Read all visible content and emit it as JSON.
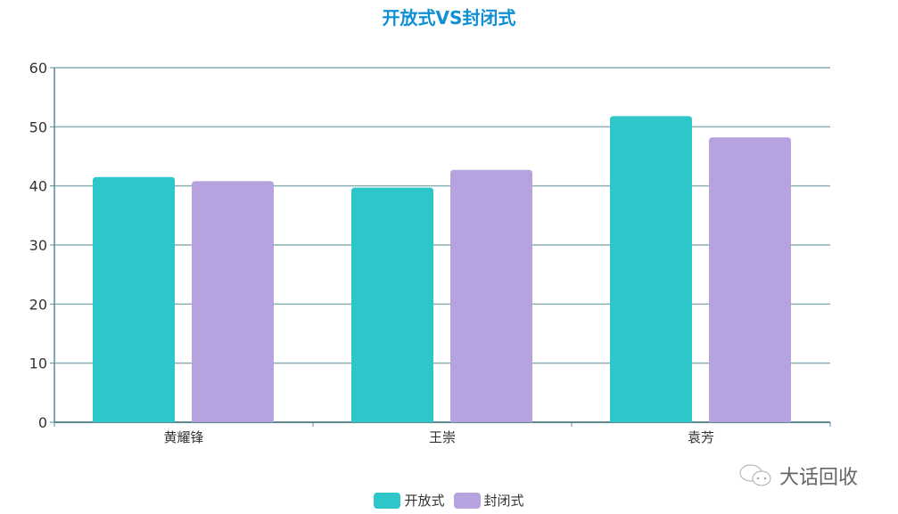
{
  "chart_data": {
    "type": "bar",
    "title": "开放式VS封闭式",
    "categories": [
      "黄耀锋",
      "王崇",
      "袁芳"
    ],
    "series": [
      {
        "name": "开放式",
        "color": "#2ec7c9",
        "values": [
          41.5,
          39.7,
          51.8
        ]
      },
      {
        "name": "封闭式",
        "color": "#b6a2de",
        "values": [
          40.8,
          42.7,
          48.2
        ]
      }
    ],
    "ylim": [
      0,
      60
    ],
    "yticks": [
      0,
      10,
      20,
      30,
      40,
      50,
      60
    ],
    "grid": true,
    "legend": "bottom-center"
  },
  "watermark": {
    "text": "大话回收",
    "icon": "wechat-icon"
  }
}
